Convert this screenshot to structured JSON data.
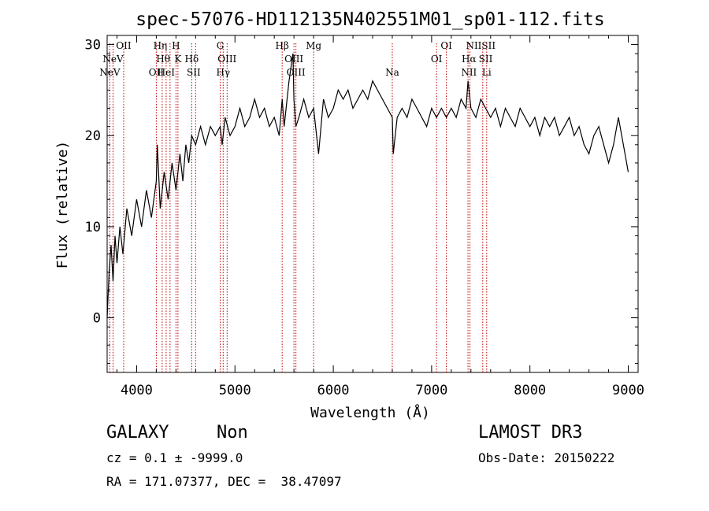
{
  "chart_data": {
    "type": "line",
    "title": "spec-57076-HD112135N402551M01_sp01-112.fits",
    "xlabel": "Wavelength (Å)",
    "ylabel": "Flux (relative)",
    "xlim": [
      3700,
      9100
    ],
    "ylim": [
      -6,
      31
    ],
    "xticks": [
      4000,
      5000,
      6000,
      7000,
      8000,
      9000
    ],
    "yticks": [
      0,
      10,
      20,
      30
    ],
    "xtick_labels": [
      "4000",
      "5000",
      "6000",
      "7000",
      "8000",
      "9000"
    ],
    "ytick_labels": [
      "0",
      "10",
      "20",
      "30"
    ],
    "series": [
      {
        "name": "spectrum",
        "x": [
          3700,
          3720,
          3740,
          3760,
          3780,
          3800,
          3830,
          3860,
          3900,
          3950,
          4000,
          4050,
          4100,
          4150,
          4200,
          4210,
          4240,
          4280,
          4320,
          4360,
          4400,
          4440,
          4470,
          4500,
          4530,
          4560,
          4600,
          4650,
          4700,
          4750,
          4800,
          4850,
          4870,
          4900,
          4950,
          5000,
          5050,
          5100,
          5150,
          5200,
          5250,
          5300,
          5350,
          5400,
          5450,
          5480,
          5500,
          5550,
          5590,
          5600,
          5620,
          5650,
          5700,
          5750,
          5800,
          5850,
          5900,
          5950,
          6000,
          6050,
          6100,
          6150,
          6200,
          6250,
          6300,
          6350,
          6400,
          6450,
          6500,
          6550,
          6600,
          6610,
          6650,
          6700,
          6750,
          6800,
          6850,
          6900,
          6950,
          7000,
          7050,
          7100,
          7150,
          7200,
          7250,
          7300,
          7350,
          7370,
          7400,
          7450,
          7500,
          7550,
          7600,
          7650,
          7700,
          7750,
          7800,
          7850,
          7900,
          7950,
          8000,
          8050,
          8100,
          8150,
          8200,
          8250,
          8300,
          8350,
          8400,
          8450,
          8500,
          8550,
          8600,
          8650,
          8700,
          8750,
          8800,
          8850,
          8900,
          8950,
          9000
        ],
        "y": [
          0,
          5,
          8,
          4,
          9,
          6,
          10,
          7,
          12,
          9,
          13,
          10,
          14,
          11,
          15,
          19,
          12,
          16,
          13,
          17,
          14,
          18,
          15,
          19,
          17,
          20,
          19,
          21,
          19,
          21,
          20,
          21,
          19,
          22,
          20,
          21,
          23,
          21,
          22,
          24,
          22,
          23,
          21,
          22,
          20,
          24,
          21,
          26,
          29,
          24,
          21,
          22,
          24,
          22,
          23,
          18,
          24,
          22,
          23,
          25,
          24,
          25,
          23,
          24,
          25,
          24,
          26,
          25,
          24,
          23,
          22,
          18,
          22,
          23,
          22,
          24,
          23,
          22,
          21,
          23,
          22,
          23,
          22,
          23,
          22,
          24,
          23,
          26,
          23,
          22,
          24,
          23,
          22,
          23,
          21,
          23,
          22,
          21,
          23,
          22,
          21,
          22,
          20,
          22,
          21,
          22,
          20,
          21,
          22,
          20,
          21,
          19,
          18,
          20,
          21,
          19,
          17,
          19,
          22,
          19,
          16
        ]
      }
    ],
    "line_markers": [
      {
        "name": "NeV",
        "wavelength": 3727,
        "row": 2
      },
      {
        "name": "NeV",
        "wavelength": 3760,
        "row": 1
      },
      {
        "name": "OII",
        "wavelength": 3868,
        "row": 0
      },
      {
        "name": "OII",
        "wavelength": 4200,
        "row": 2
      },
      {
        "name": "Hη",
        "wavelength": 4240,
        "row": 0
      },
      {
        "name": "Hθ",
        "wavelength": 4270,
        "row": 1
      },
      {
        "name": "HeI",
        "wavelength": 4300,
        "row": 2
      },
      {
        "name": "H",
        "wavelength": 4400,
        "row": 0
      },
      {
        "name": "K",
        "wavelength": 4420,
        "row": 1
      },
      {
        "name": "Hδ",
        "wavelength": 4560,
        "row": 1
      },
      {
        "name": "SII",
        "wavelength": 4580,
        "row": 2
      },
      {
        "name": "G",
        "wavelength": 4850,
        "row": 0
      },
      {
        "name": "OIII",
        "wavelength": 4920,
        "row": 1
      },
      {
        "name": "Hγ",
        "wavelength": 4880,
        "row": 2
      },
      {
        "name": "Hβ",
        "wavelength": 5480,
        "row": 0
      },
      {
        "name": "OIII",
        "wavelength": 5600,
        "row": 1
      },
      {
        "name": "OIII",
        "wavelength": 5620,
        "row": 2
      },
      {
        "name": "Mg",
        "wavelength": 5800,
        "row": 0
      },
      {
        "name": "Na",
        "wavelength": 6600,
        "row": 2
      },
      {
        "name": "OI",
        "wavelength": 7150,
        "row": 0
      },
      {
        "name": "OI",
        "wavelength": 7050,
        "row": 1
      },
      {
        "name": "NIISII",
        "wavelength": 7500,
        "row": 0
      },
      {
        "name": "Hα",
        "wavelength": 7380,
        "row": 1
      },
      {
        "name": "SII",
        "wavelength": 7550,
        "row": 1
      },
      {
        "name": "NII",
        "wavelength": 7380,
        "row": 2
      },
      {
        "name": "Li",
        "wavelength": 7560,
        "row": 2
      }
    ],
    "marker_lines": [
      3727,
      3760,
      3868,
      4200,
      4260,
      4300,
      4340,
      4400,
      4420,
      4560,
      4600,
      4850,
      4880,
      4920,
      5480,
      5600,
      5620,
      5800,
      6600,
      7050,
      7150,
      7370,
      7390,
      7520,
      7560
    ],
    "marker_color": "#c00000",
    "line_color": "#000000"
  },
  "info": {
    "class_label": "GALAXY",
    "subclass_label": "Non",
    "survey_label": "LAMOST DR3",
    "cz_text": "cz = 0.1 ± -9999.0",
    "obs_date_text": "Obs-Date: 20150222",
    "coords_text": "RA = 171.07377, DEC =  38.47097"
  }
}
